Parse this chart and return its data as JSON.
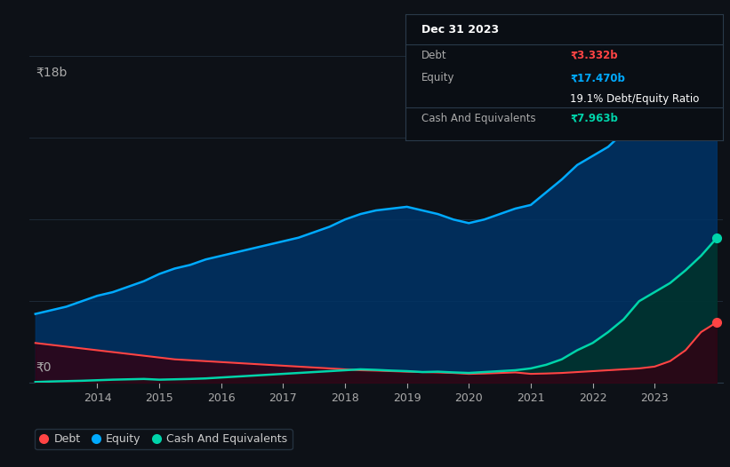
{
  "bg_color": "#0d1117",
  "plot_bg_color": "#0d1117",
  "grid_color": "#1e2a38",
  "title_date": "Dec 31 2023",
  "tooltip": {
    "debt_label": "Debt",
    "debt_value": "₹3.332b",
    "equity_label": "Equity",
    "equity_value": "₹17.470b",
    "ratio_text": "19.1% Debt/Equity Ratio",
    "cash_label": "Cash And Equivalents",
    "cash_value": "₹7.963b"
  },
  "years": [
    2013.0,
    2013.25,
    2013.5,
    2013.75,
    2014.0,
    2014.25,
    2014.5,
    2014.75,
    2015.0,
    2015.25,
    2015.5,
    2015.75,
    2016.0,
    2016.25,
    2016.5,
    2016.75,
    2017.0,
    2017.25,
    2017.5,
    2017.75,
    2018.0,
    2018.25,
    2018.5,
    2018.75,
    2019.0,
    2019.25,
    2019.5,
    2019.75,
    2020.0,
    2020.25,
    2020.5,
    2020.75,
    2021.0,
    2021.25,
    2021.5,
    2021.75,
    2022.0,
    2022.25,
    2022.5,
    2022.75,
    2023.0,
    2023.25,
    2023.5,
    2023.75,
    2024.0
  ],
  "equity": [
    3.8,
    4.0,
    4.2,
    4.5,
    4.8,
    5.0,
    5.3,
    5.6,
    6.0,
    6.3,
    6.5,
    6.8,
    7.0,
    7.2,
    7.4,
    7.6,
    7.8,
    8.0,
    8.3,
    8.6,
    9.0,
    9.3,
    9.5,
    9.6,
    9.7,
    9.5,
    9.3,
    9.0,
    8.8,
    9.0,
    9.3,
    9.6,
    9.8,
    10.5,
    11.2,
    12.0,
    12.5,
    13.0,
    13.8,
    14.5,
    15.0,
    15.8,
    16.5,
    17.2,
    17.47
  ],
  "debt": [
    2.2,
    2.1,
    2.0,
    1.9,
    1.8,
    1.7,
    1.6,
    1.5,
    1.4,
    1.3,
    1.25,
    1.2,
    1.15,
    1.1,
    1.05,
    1.0,
    0.95,
    0.9,
    0.85,
    0.8,
    0.75,
    0.7,
    0.68,
    0.65,
    0.62,
    0.6,
    0.58,
    0.55,
    0.5,
    0.52,
    0.55,
    0.58,
    0.5,
    0.52,
    0.55,
    0.6,
    0.65,
    0.7,
    0.75,
    0.8,
    0.9,
    1.2,
    1.8,
    2.8,
    3.332
  ],
  "cash": [
    0.05,
    0.08,
    0.1,
    0.12,
    0.15,
    0.18,
    0.2,
    0.22,
    0.18,
    0.2,
    0.22,
    0.25,
    0.3,
    0.35,
    0.4,
    0.45,
    0.5,
    0.55,
    0.6,
    0.65,
    0.7,
    0.75,
    0.72,
    0.68,
    0.65,
    0.6,
    0.62,
    0.58,
    0.55,
    0.6,
    0.65,
    0.7,
    0.8,
    1.0,
    1.3,
    1.8,
    2.2,
    2.8,
    3.5,
    4.5,
    5.0,
    5.5,
    6.2,
    7.0,
    7.963
  ],
  "ylim": [
    0,
    18
  ],
  "y_label": "₹18b",
  "y_zero": "₹0",
  "equity_color": "#00aaff",
  "debt_color": "#ff4444",
  "cash_color": "#00d4aa",
  "equity_fill_color": "#003366",
  "debt_fill_color": "#330011",
  "cash_fill_color": "#003322",
  "legend_labels": [
    "Debt",
    "Equity",
    "Cash And Equivalents"
  ],
  "legend_colors": [
    "#ff4444",
    "#00aaff",
    "#00d4aa"
  ],
  "x_ticks": [
    2014,
    2015,
    2016,
    2017,
    2018,
    2019,
    2020,
    2021,
    2022,
    2023
  ],
  "tooltip_box_color": "#0a0e14",
  "tooltip_border_color": "#2a3a4a"
}
